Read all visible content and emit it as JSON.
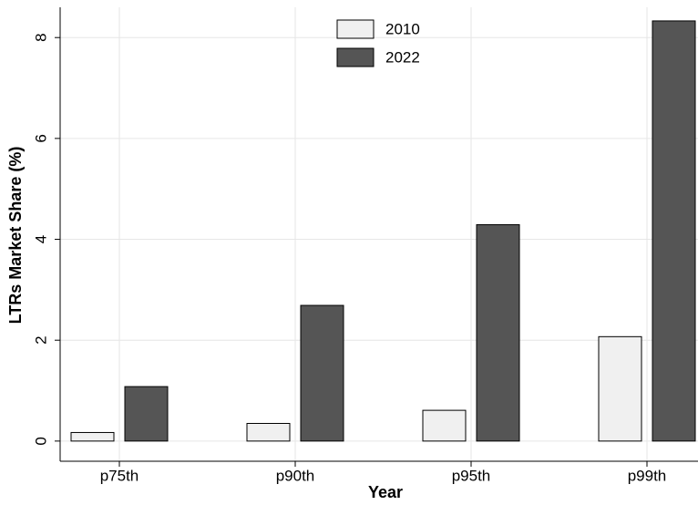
{
  "chart_data": {
    "type": "bar",
    "x_label": "Year",
    "y_label": "LTRs Market Share (%)",
    "categories": [
      "p75th",
      "p90th",
      "p95th",
      "p99th"
    ],
    "series": [
      {
        "name": "2010",
        "color": "#f0f0f0",
        "values": [
          0.17,
          0.35,
          0.61,
          2.07
        ]
      },
      {
        "name": "2022",
        "color": "#555555",
        "values": [
          1.08,
          2.69,
          4.29,
          8.33
        ]
      }
    ],
    "ylim": [
      -0.4,
      8.6
    ],
    "yticks": [
      0,
      2,
      4,
      6,
      8
    ],
    "grid": true,
    "legend": "top"
  }
}
